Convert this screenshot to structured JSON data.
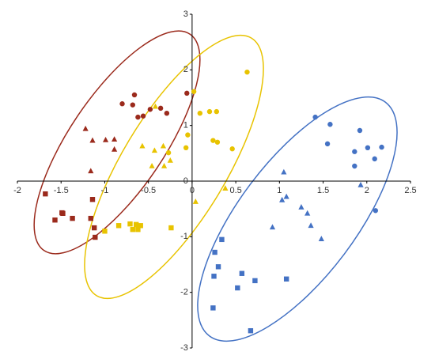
{
  "chart_data": {
    "type": "scatter",
    "xlim": [
      -2,
      2.5
    ],
    "ylim": [
      -3,
      3
    ],
    "xticks": [
      -2,
      -1.5,
      -1,
      -0.5,
      0,
      0.5,
      1,
      1.5,
      2,
      2.5
    ],
    "yticks": [
      -3,
      -2,
      -1,
      0,
      1,
      2,
      3
    ],
    "series": [
      {
        "color": "#9b2a1c",
        "marker": "circle",
        "x": [
          -0.8,
          -0.66,
          -0.68,
          -0.62,
          -0.56,
          -0.48,
          -0.36,
          -0.29,
          -0.06
        ],
        "values": [
          1.39,
          1.55,
          1.37,
          1.15,
          1.17,
          1.29,
          1.31,
          1.22,
          1.58
        ]
      },
      {
        "color": "#9b2a1c",
        "marker": "triangle",
        "x": [
          -1.22,
          -1.14,
          -0.99,
          -0.89,
          -0.89,
          -1.16
        ],
        "values": [
          0.94,
          0.73,
          0.74,
          0.75,
          0.57,
          0.18
        ]
      },
      {
        "color": "#9b2a1c",
        "marker": "square",
        "x": [
          -1.68,
          -1.57,
          -1.49,
          -1.48,
          -1.37,
          -1.16,
          -1.14,
          -1.12,
          -1.11
        ],
        "values": [
          -0.23,
          -0.7,
          -0.57,
          -0.58,
          -0.67,
          -0.67,
          -0.33,
          -0.84,
          -1.01
        ]
      },
      {
        "color": "#e8c300",
        "marker": "circle",
        "x": [
          0.63,
          0.02,
          0.09,
          0.2,
          0.28,
          0.24,
          0.29,
          0.46,
          -0.05,
          -0.07,
          -0.27
        ],
        "values": [
          1.96,
          1.61,
          1.22,
          1.25,
          1.25,
          0.73,
          0.7,
          0.58,
          0.83,
          0.6,
          0.51
        ]
      },
      {
        "color": "#e8c300",
        "marker": "triangle",
        "x": [
          -0.42,
          -0.57,
          -0.43,
          -0.33,
          -0.25,
          -0.46,
          -0.32,
          0.38,
          0.04
        ],
        "values": [
          1.34,
          0.63,
          0.55,
          0.63,
          0.37,
          0.27,
          0.27,
          -0.13,
          -0.37
        ]
      },
      {
        "color": "#e8c300",
        "marker": "square",
        "x": [
          -1.0,
          -0.84,
          -0.71,
          -0.64,
          -0.62,
          -0.68,
          -0.24,
          -0.59
        ],
        "values": [
          -0.9,
          -0.8,
          -0.77,
          -0.78,
          -0.87,
          -0.87,
          -0.84,
          -0.8
        ]
      },
      {
        "color": "#4472c4",
        "marker": "circle",
        "x": [
          1.41,
          1.58,
          1.55,
          1.92,
          2.01,
          1.86,
          1.86,
          2.09,
          2.17,
          2.1
        ],
        "values": [
          1.15,
          1.02,
          0.67,
          0.91,
          0.6,
          0.53,
          0.27,
          0.4,
          0.61,
          -0.53
        ]
      },
      {
        "color": "#4472c4",
        "marker": "triangle",
        "x": [
          1.05,
          1.03,
          1.08,
          1.25,
          1.32,
          0.92,
          1.36,
          1.48,
          1.93
        ],
        "values": [
          0.16,
          -0.34,
          -0.28,
          -0.47,
          -0.58,
          -0.83,
          -0.8,
          -1.04,
          -0.07
        ]
      },
      {
        "color": "#4472c4",
        "marker": "square",
        "x": [
          0.34,
          0.26,
          0.25,
          0.3,
          0.57,
          0.52,
          0.72,
          1.08,
          0.24,
          0.67
        ],
        "values": [
          -1.05,
          -1.28,
          -1.71,
          -1.54,
          -1.66,
          -1.92,
          -1.79,
          -1.76,
          -2.28,
          -2.69
        ]
      }
    ]
  }
}
